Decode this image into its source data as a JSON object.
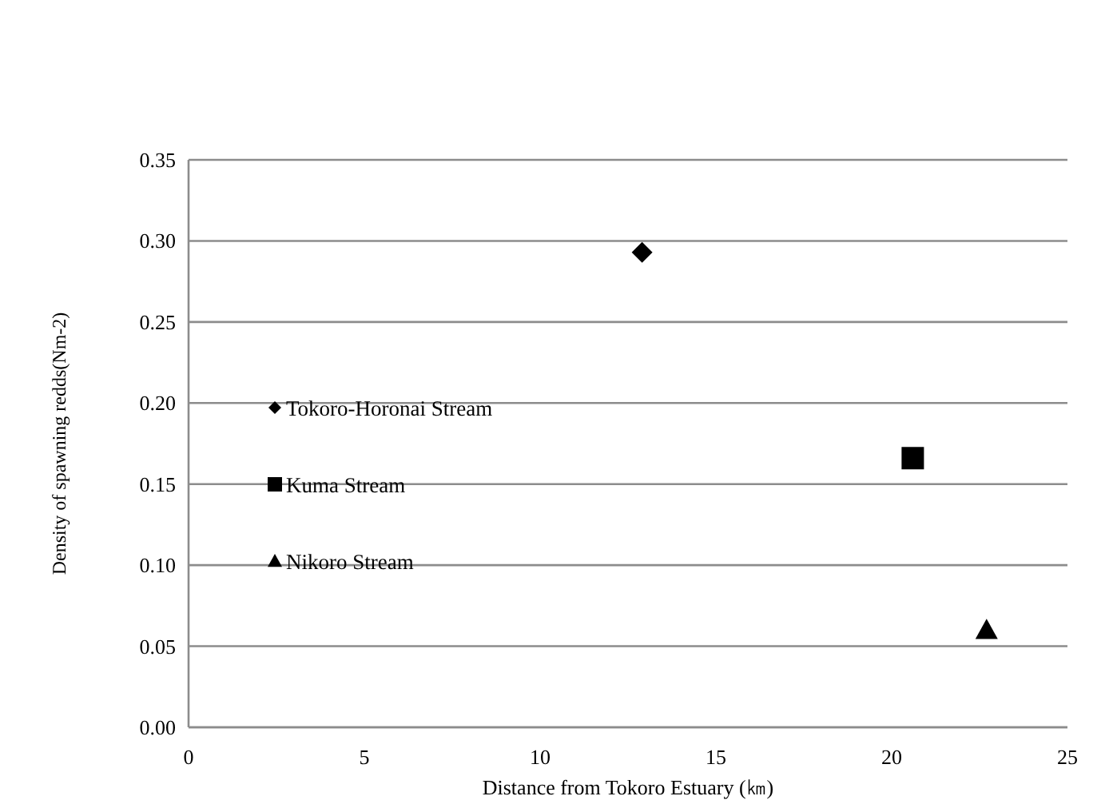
{
  "chart_data": {
    "type": "scatter",
    "xlabel": "Distance from Tokoro Estuary (㎞)",
    "ylabel": "Density of spawning redds(Nm-2)",
    "series": [
      {
        "name": "Tokoro-Horonai Stream",
        "color": "#000000",
        "marker": "diamond",
        "x": [
          12.9
        ],
        "values": [
          0.293
        ]
      },
      {
        "name": "Kuma Stream",
        "color": "#000000",
        "marker": "square",
        "x": [
          20.6
        ],
        "values": [
          0.166
        ]
      },
      {
        "name": "Nikoro Stream",
        "color": "#000000",
        "marker": "triangle",
        "x": [
          22.7
        ],
        "values": [
          0.06
        ]
      }
    ],
    "xlim": [
      0,
      25
    ],
    "xticks": [
      0,
      5,
      10,
      15,
      20,
      25
    ],
    "ylim": [
      0,
      0.35
    ],
    "yticks": [
      {
        "value": 0,
        "label": "0.00"
      },
      {
        "value": 0.05,
        "label": "0.05"
      },
      {
        "value": 0.1,
        "label": "0.10"
      },
      {
        "value": 0.15,
        "label": "0.15"
      },
      {
        "value": 0.2,
        "label": "0.20"
      },
      {
        "value": 0.25,
        "label": "0.25"
      },
      {
        "value": 0.3,
        "label": "0.30"
      },
      {
        "value": 0.35,
        "label": "0.35"
      }
    ],
    "grid": "y",
    "legend": "left"
  }
}
